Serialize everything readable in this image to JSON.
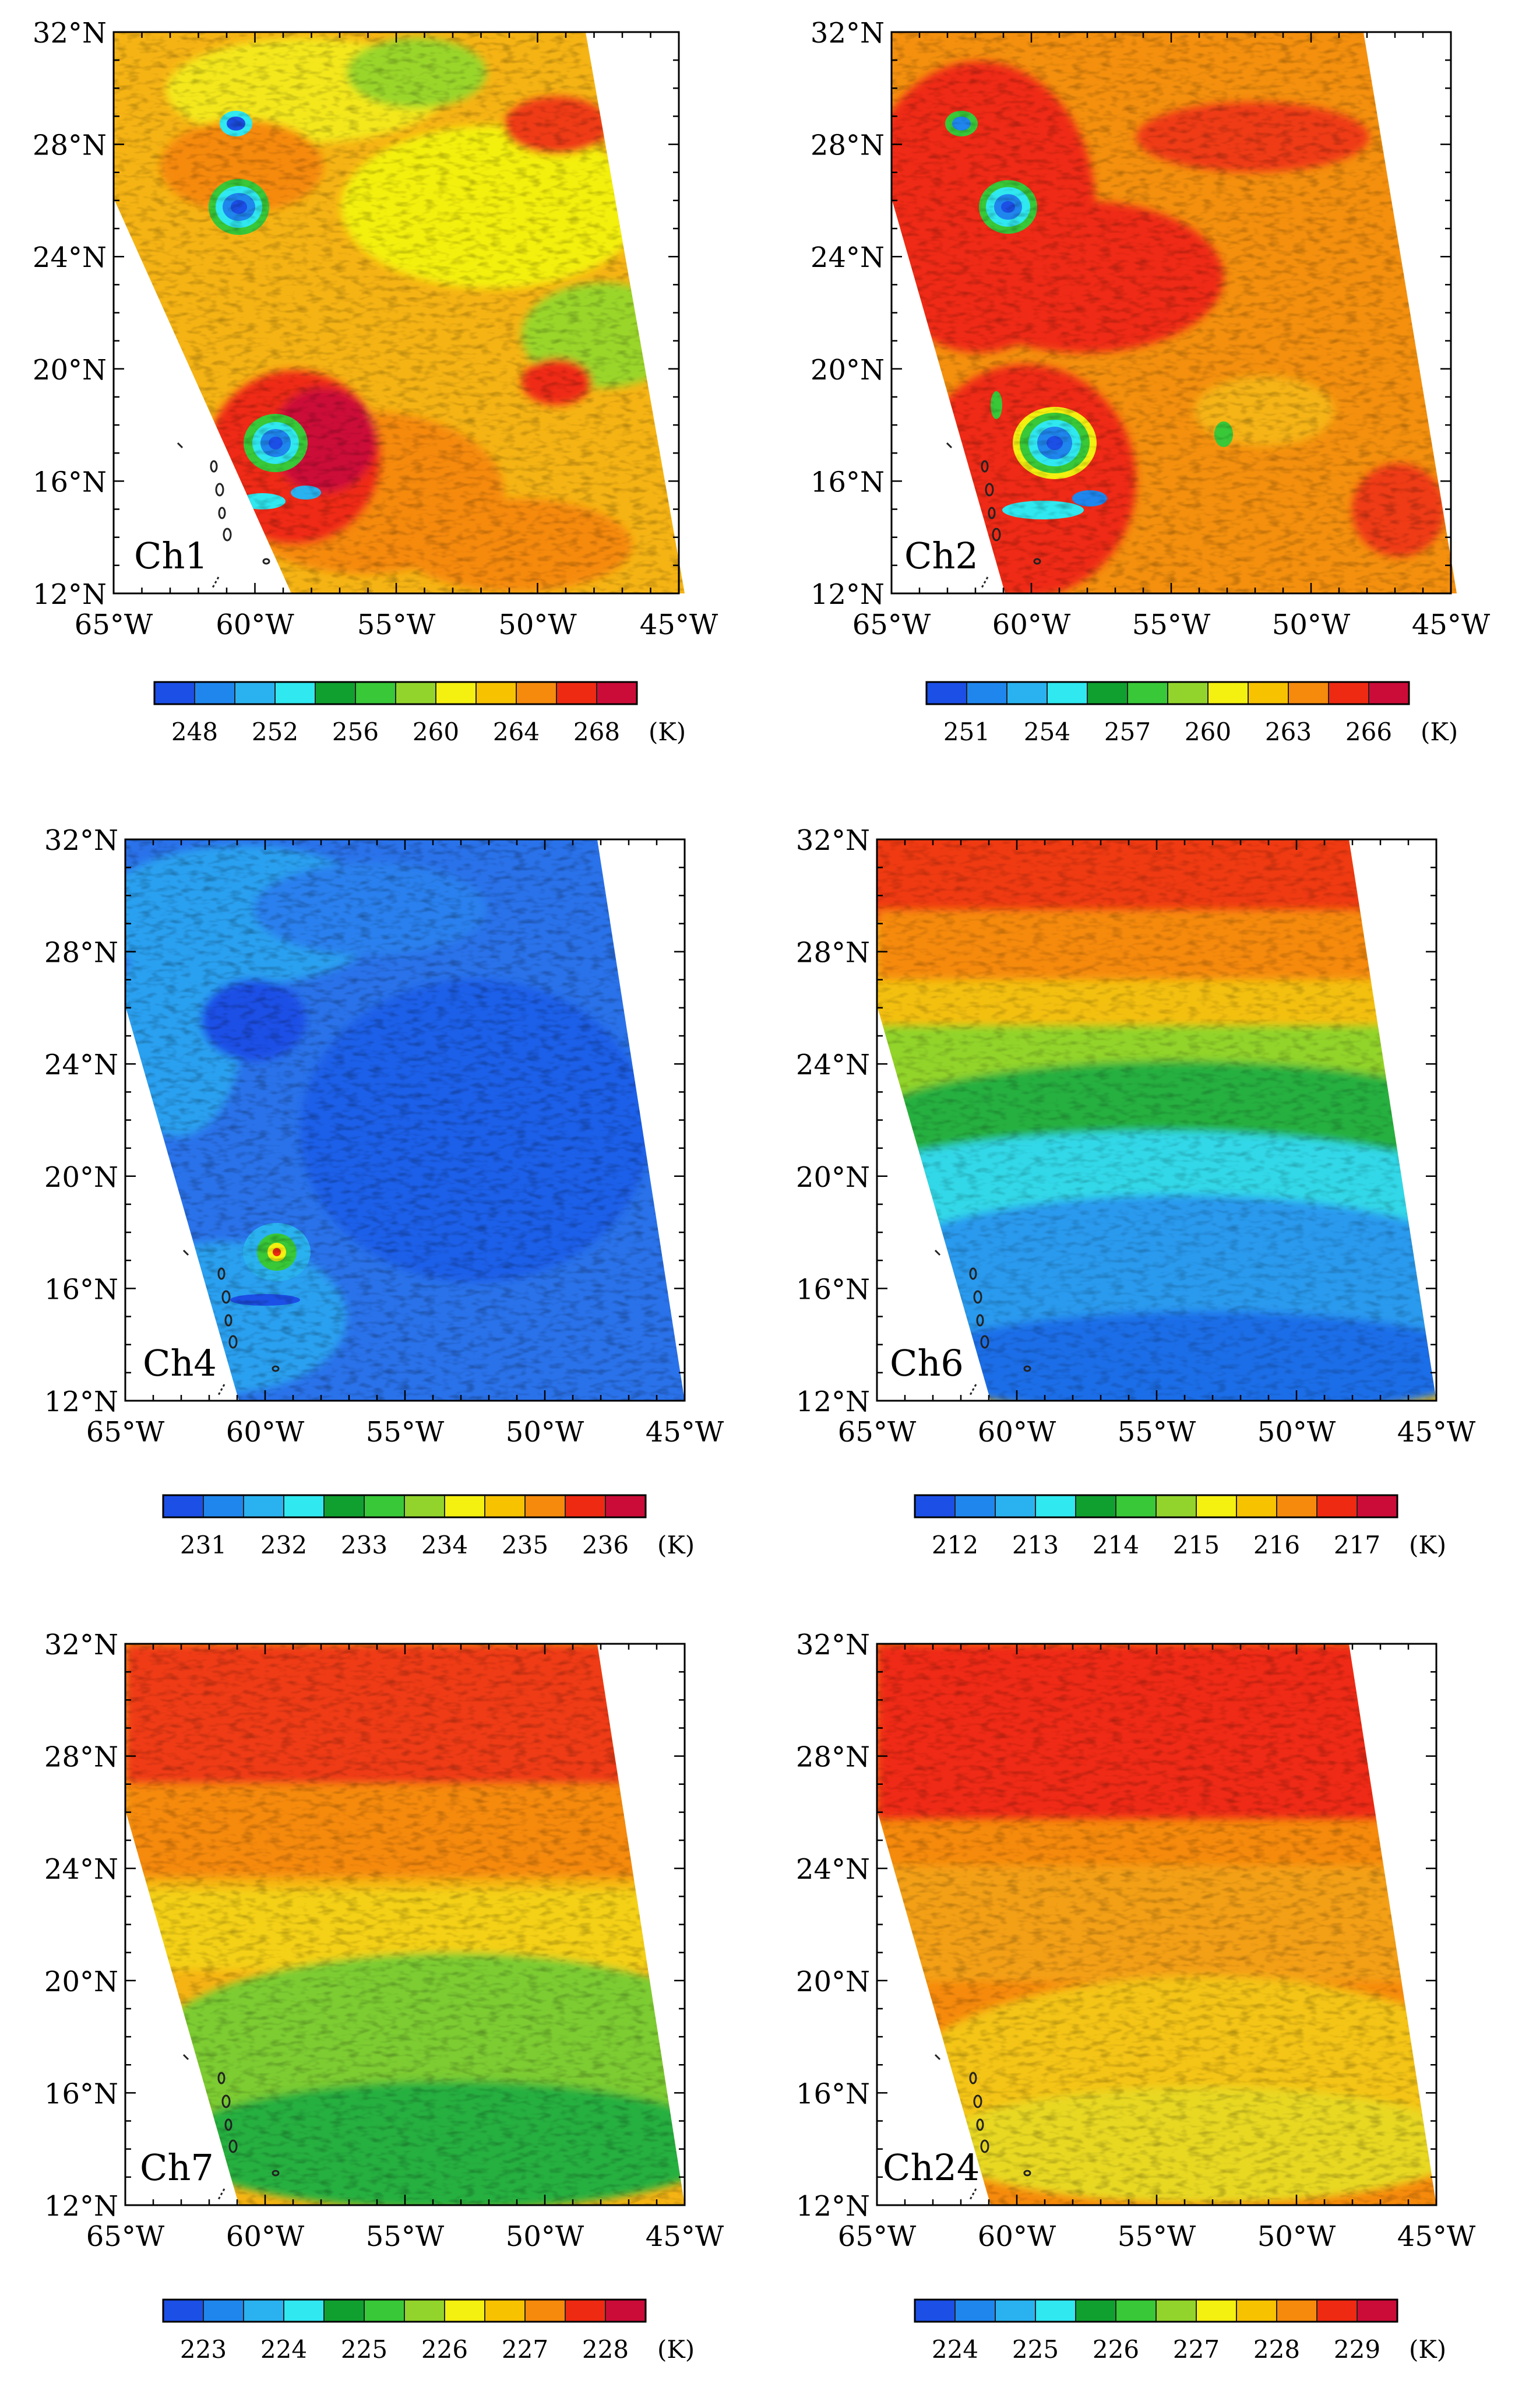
{
  "figure": {
    "lat_labels": [
      "32°N",
      "28°N",
      "24°N",
      "20°N",
      "16°N",
      "12°N"
    ],
    "lon_labels": [
      "65°W",
      "60°W",
      "55°W",
      "50°W",
      "45°W"
    ],
    "unit": "(K)"
  },
  "panels": [
    {
      "label": "Ch1",
      "ticks": [
        "248",
        "252",
        "256",
        "260",
        "264",
        "268"
      ],
      "field": "ch1"
    },
    {
      "label": "Ch2",
      "ticks": [
        "251",
        "254",
        "257",
        "260",
        "263",
        "266"
      ],
      "field": "ch2"
    },
    {
      "label": "Ch4",
      "ticks": [
        "231",
        "232",
        "233",
        "234",
        "235",
        "236"
      ],
      "field": "ch4"
    },
    {
      "label": "Ch6",
      "ticks": [
        "212",
        "213",
        "214",
        "215",
        "216",
        "217"
      ],
      "field": "ch6"
    },
    {
      "label": "Ch7",
      "ticks": [
        "223",
        "224",
        "225",
        "226",
        "227",
        "228"
      ],
      "field": "ch7"
    },
    {
      "label": "Ch24",
      "ticks": [
        "224",
        "225",
        "226",
        "227",
        "228",
        "229"
      ],
      "field": "ch24"
    }
  ],
  "colors": {
    "scale": [
      "#1c4fe6",
      "#1f86ee",
      "#2ab2f0",
      "#30e8f0",
      "#10a030",
      "#38c838",
      "#92d42c",
      "#f4f010",
      "#f7c200",
      "#f68a0c",
      "#ef2a12",
      "#cc0c38"
    ]
  }
}
